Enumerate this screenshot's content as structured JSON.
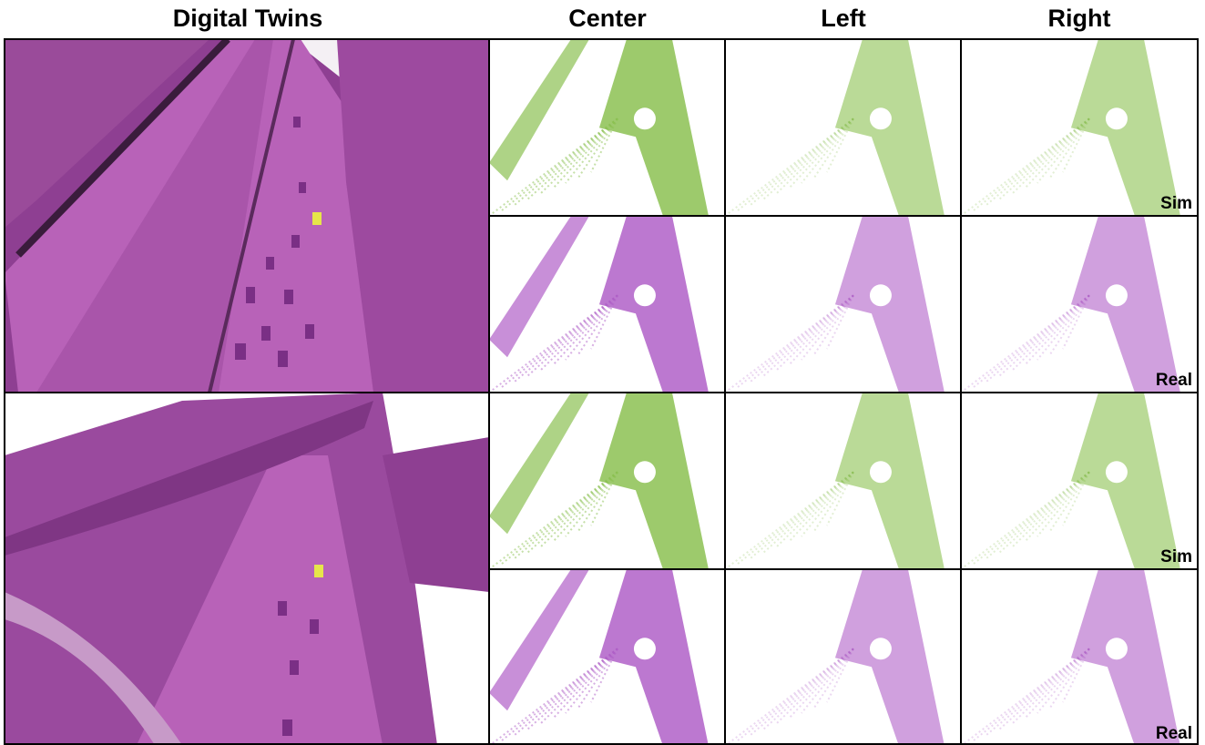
{
  "headers": [
    "Digital Twins",
    "Center",
    "Left",
    "Right"
  ],
  "rows": [
    {
      "label": "Sim"
    },
    {
      "label": "Real"
    },
    {
      "label": "Sim"
    },
    {
      "label": "Real"
    }
  ]
}
